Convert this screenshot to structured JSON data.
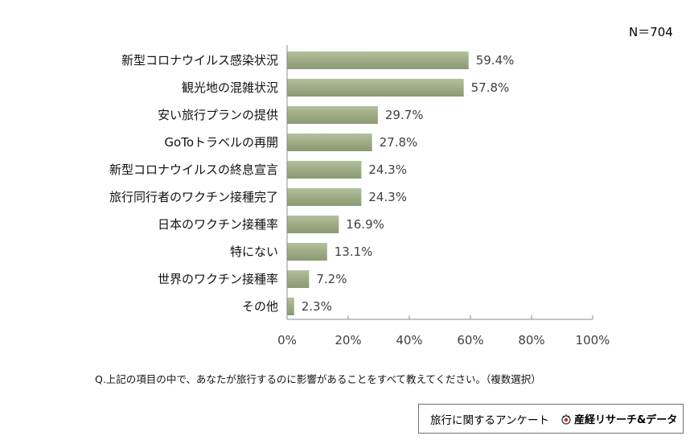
{
  "sample_size": "N＝704",
  "question": "Q.上記の項目の中で、あなたが旅行するのに影響があることをすべて教えてください。（複数選択）",
  "survey_name": "旅行に関するアンケート",
  "brand_name": "産経リサーチ&データ",
  "colors": {
    "bar": "#9dac85",
    "axis": "#8c8c8c"
  },
  "chart_data": {
    "type": "bar",
    "orientation": "horizontal",
    "categories": [
      "新型コロナウイルス感染状況",
      "観光地の混雑状況",
      "安い旅行プランの提供",
      "GoToトラベルの再開",
      "新型コロナウイルスの終息宣言",
      "旅行同行者のワクチン接種完了",
      "日本のワクチン接種率",
      "特にない",
      "世界のワクチン接種率",
      "その他"
    ],
    "values": [
      59.4,
      57.8,
      29.7,
      27.8,
      24.3,
      24.3,
      16.9,
      13.1,
      7.2,
      2.3
    ],
    "value_labels": [
      "59.4%",
      "57.8%",
      "29.7%",
      "27.8%",
      "24.3%",
      "24.3%",
      "16.9%",
      "13.1%",
      "7.2%",
      "2.3%"
    ],
    "xlim": [
      0,
      100
    ],
    "xticks": [
      "0%",
      "20%",
      "40%",
      "60%",
      "80%",
      "100%"
    ],
    "grid": false
  }
}
